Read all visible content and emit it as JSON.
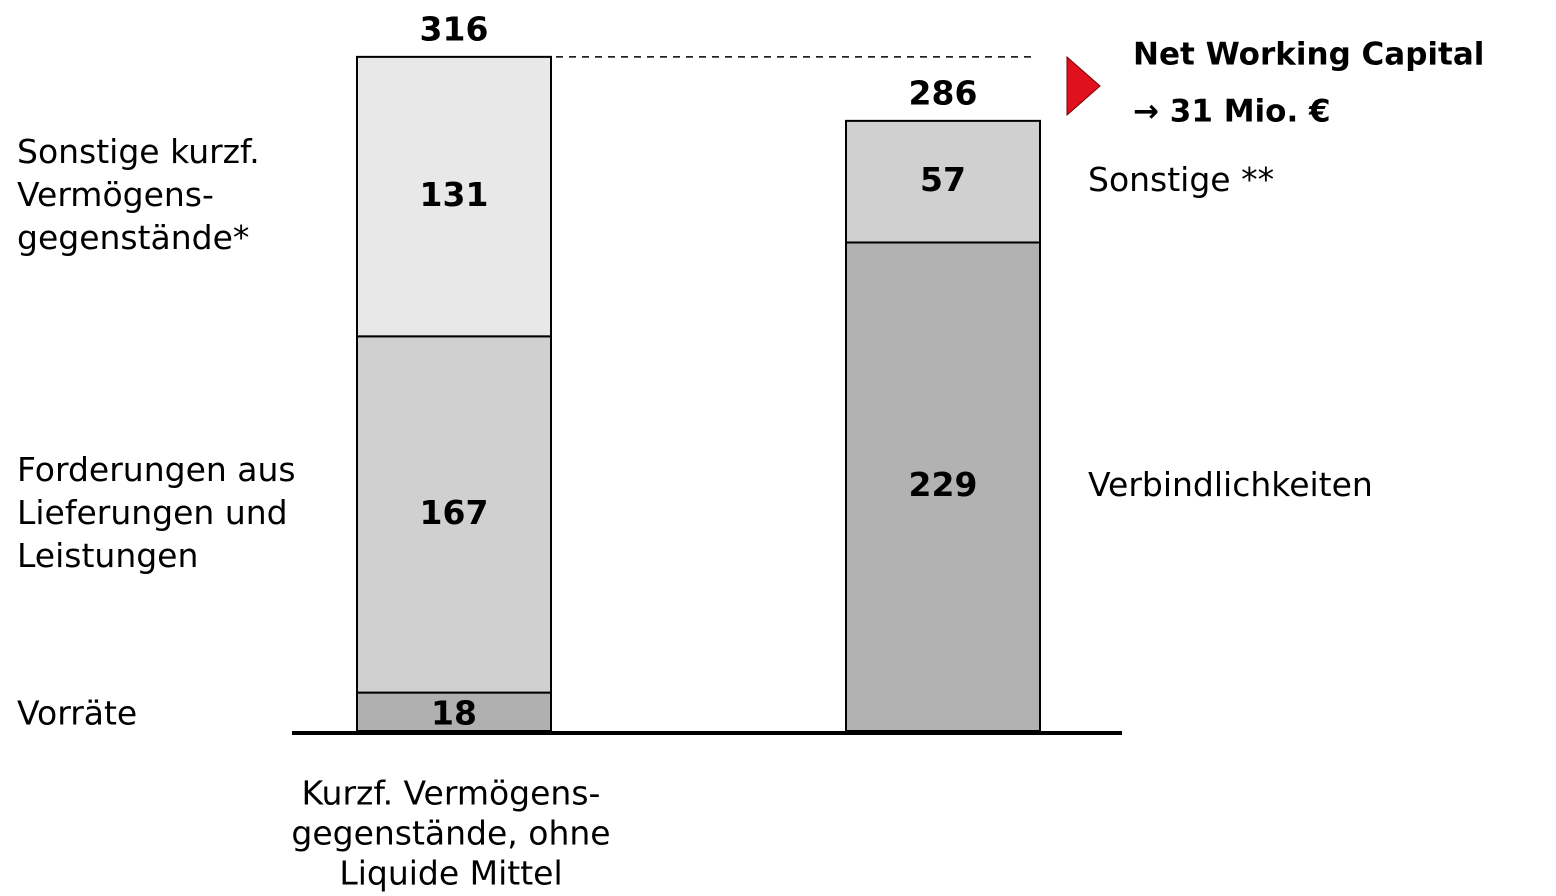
{
  "chart_data": {
    "type": "stacked-bar",
    "categories": [
      [
        "Kurzf. Vermögens-",
        "gegenstände, ohne",
        "Liquide Mittel"
      ],
      null
    ],
    "series": [
      {
        "name": [
          "Vorräte"
        ],
        "color": "#b0b0b0",
        "values": [
          18,
          null
        ]
      },
      {
        "name": [
          "Forderungen aus",
          "Lieferungen und",
          "Leistungen"
        ],
        "color": "#d0d0d0",
        "values": [
          167,
          null
        ]
      },
      {
        "name": [
          "Sonstige kurzf.",
          "Vermögens-",
          "gegenstände*"
        ],
        "color": "#e8e8e8",
        "values": [
          131,
          null
        ]
      },
      {
        "name": [
          "Verbindlichkeiten"
        ],
        "color": "#b2b2b2",
        "values": [
          null,
          229
        ]
      },
      {
        "name": [
          "Sonstige **"
        ],
        "color": "#d0d0d0",
        "values": [
          null,
          57
        ]
      }
    ],
    "totals": [
      316,
      286
    ],
    "annotation": [
      "Net Working Capital",
      "→ 31 Mio. €"
    ],
    "ylim": [
      0,
      330
    ]
  }
}
